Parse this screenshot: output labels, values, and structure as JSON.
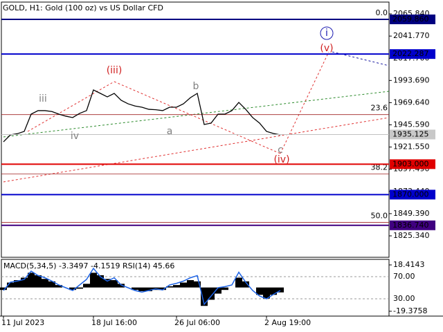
{
  "chart_data": [
    {
      "type": "line",
      "title": "GOLD, H1:  Gold (100 oz) vs US Dollar CFD",
      "categories": [
        "11 Jul 2023",
        null,
        null,
        null,
        null,
        null,
        null,
        null,
        null,
        null,
        null,
        null,
        null,
        "18 Jul 16:00",
        null,
        null,
        null,
        null,
        null,
        null,
        null,
        null,
        null,
        null,
        null,
        "26 Jul 06:00",
        null,
        null,
        null,
        null,
        null,
        null,
        null,
        null,
        null,
        null,
        null,
        null,
        "2 Aug 19:00",
        null,
        null
      ],
      "values": [
        1927.2,
        1934.7,
        1936,
        1938.5,
        1957.2,
        1961,
        1961,
        1960,
        1957.2,
        1955,
        1953.5,
        1958,
        1961,
        1983.4,
        1979.7,
        1975.9,
        1979.7,
        1972.2,
        1968.4,
        1966,
        1964.7,
        1962.4,
        1962,
        1961,
        1964.7,
        1964.7,
        1968.4,
        1975,
        1979.7,
        1946,
        1947.5,
        1957.2,
        1957.2,
        1961,
        1969.9,
        1962.4,
        1953.5,
        1947.5,
        1938.5,
        1936.2,
        1934.7
      ],
      "color": "#000000",
      "ylim": [
        1803.6,
        2077.1
      ],
      "yticks": [
        {
          "value": 2065.84,
          "label": "2065.840"
        },
        {
          "value": 2041.77,
          "label": "2041.770"
        },
        {
          "value": 2017.7,
          "label": "2017.700"
        },
        {
          "value": 1993.69,
          "label": "1993.690"
        },
        {
          "value": 1969.64,
          "label": "1969.640"
        },
        {
          "value": 1945.59,
          "label": "1945.590"
        },
        {
          "value": 1921.55,
          "label": "1921.550"
        },
        {
          "value": 1897.49,
          "label": "1897.490"
        },
        {
          "value": 1873.44,
          "label": "1873.440"
        },
        {
          "value": 1849.39,
          "label": "1849.390"
        },
        {
          "value": 1825.34,
          "label": "1825.340"
        }
      ],
      "last_price": 1935.125,
      "levels": [
        {
          "value": 2059.86,
          "label": "2059.860",
          "color": "#000080"
        },
        {
          "value": 2022.287,
          "label": "2022.287",
          "color": "#0000cc"
        },
        {
          "value": 1903,
          "label": "1903.000",
          "color": "#e00000"
        },
        {
          "value": 1870,
          "label": "1870.000",
          "color": "#0000cc"
        },
        {
          "value": 1836.74,
          "label": "1836.740",
          "color": "#400080"
        }
      ],
      "fib_levels": [
        {
          "text": "0.0",
          "price": 2059.86
        },
        {
          "text": "23.6",
          "price": 1956.7
        },
        {
          "text": "38.2",
          "price": 1892.4
        },
        {
          "text": "50.0",
          "price": 1840
        }
      ],
      "annotations": [
        "i",
        "(v)",
        "(iii)",
        "iii",
        "iv",
        "a",
        "b",
        "c",
        "(iv)"
      ]
    },
    {
      "type": "macd-rsi",
      "title": "MACD(5,34,5) -3.3497 -4.1519 RSI(14) 45.66",
      "series": [
        {
          "color": "#000000",
          "values": [
            -2,
            4,
            6,
            8,
            12,
            10,
            7,
            5,
            2,
            0,
            -2,
            -1,
            3,
            12,
            10,
            7,
            6,
            3,
            0,
            -2,
            -3,
            -3,
            -2,
            -2,
            1,
            2,
            4,
            6,
            5,
            -15,
            -10,
            -5,
            -2,
            0,
            8,
            5,
            0,
            -6,
            -9,
            -6,
            -4
          ]
        },
        {
          "color": "#1e64e6",
          "axis": "y2",
          "values": [
            45,
            60,
            62,
            65,
            80,
            72,
            68,
            62,
            55,
            50,
            45,
            55,
            65,
            85,
            70,
            62,
            68,
            55,
            50,
            45,
            42,
            45,
            48,
            46,
            55,
            58,
            62,
            68,
            72,
            20,
            35,
            50,
            52,
            55,
            78,
            60,
            45,
            35,
            30,
            38,
            45
          ]
        }
      ],
      "ylim": [
        -19.3758,
        18.4143
      ],
      "yticks": [
        18.4143,
        -19.3758
      ],
      "y2lim": [
        1.25,
        97.5
      ],
      "y2ticks": [
        {
          "value": 70,
          "label": "70.00"
        },
        {
          "value": 30,
          "label": "30.00"
        }
      ]
    }
  ]
}
